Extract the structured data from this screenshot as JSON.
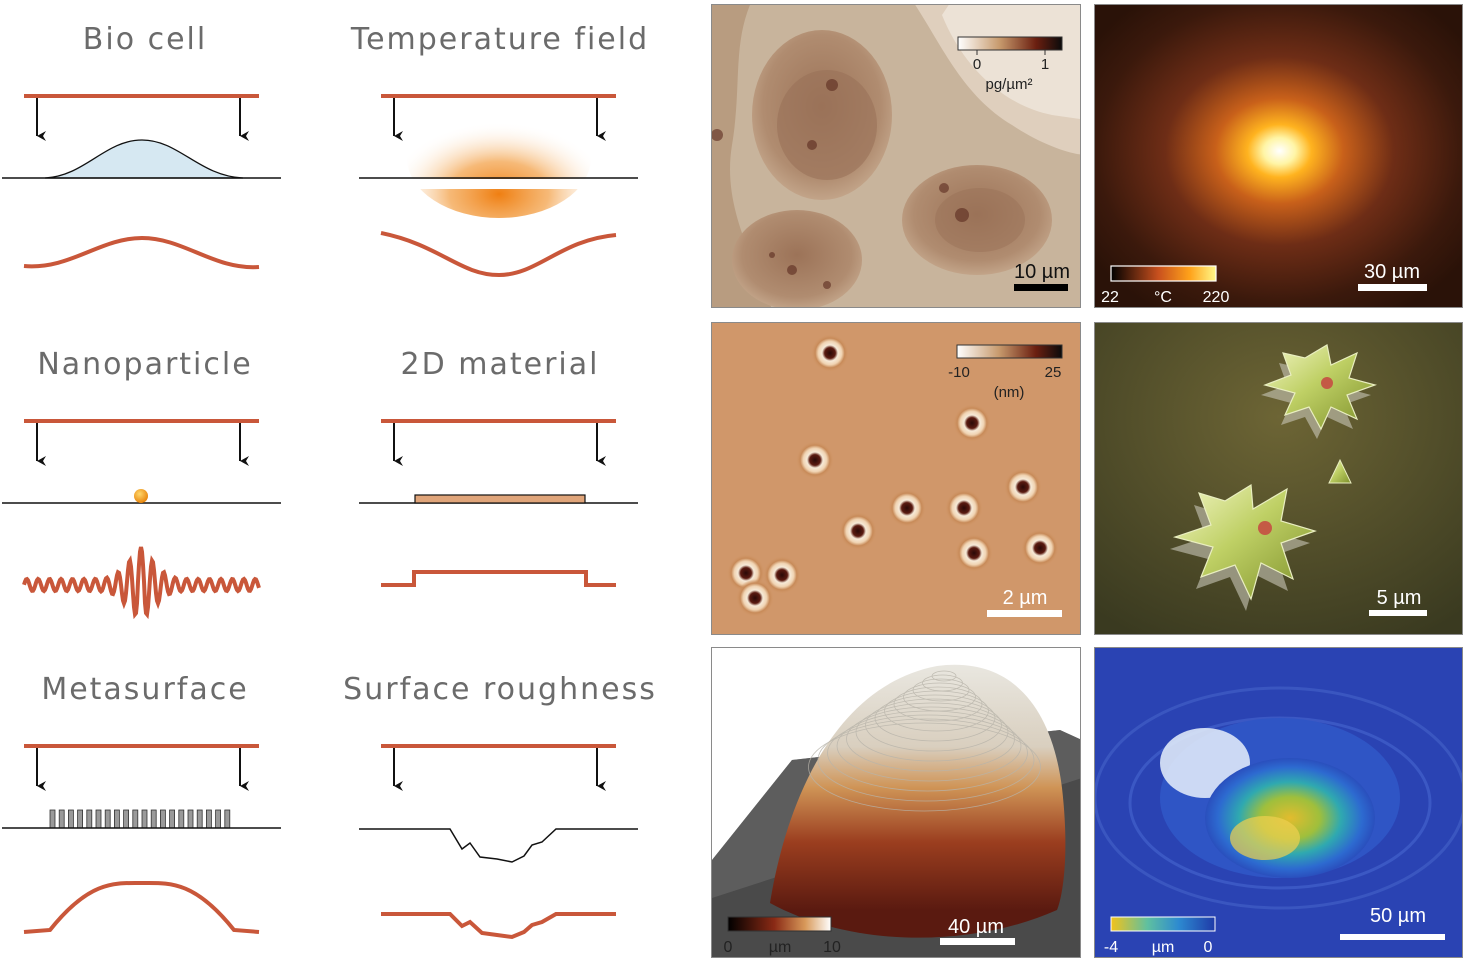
{
  "schematics": [
    {
      "title": "Bio cell"
    },
    {
      "title": "Temperature field"
    },
    {
      "title": "Nanoparticle"
    },
    {
      "title": "2D material"
    },
    {
      "title": "Metasurface"
    },
    {
      "title": "Surface roughness"
    }
  ],
  "panels": [
    {
      "scalebar": "10 µm",
      "colorbar_min": "0",
      "colorbar_max": "1",
      "colorbar_unit": "pg/µm²"
    },
    {
      "scalebar": "30 µm",
      "colorbar_min": "22",
      "colorbar_max": "220",
      "colorbar_unit": "°C"
    },
    {
      "scalebar": "2 µm",
      "colorbar_min": "-10",
      "colorbar_max": "25",
      "colorbar_unit": "(nm)"
    },
    {
      "scalebar": "5 µm"
    },
    {
      "scalebar": "40 µm",
      "colorbar_min": "0",
      "colorbar_max": "10",
      "colorbar_unit": "µm"
    },
    {
      "scalebar": "50 µm",
      "colorbar_min": "-4",
      "colorbar_max": "0",
      "colorbar_unit": "µm"
    }
  ],
  "colors": {
    "beam": "#c9573a",
    "arrow": "#111111",
    "cell_fill": "#d6e8f2",
    "heat": "#f08a1c",
    "particle": "#f0a31e",
    "flake": "#e0a57a"
  }
}
